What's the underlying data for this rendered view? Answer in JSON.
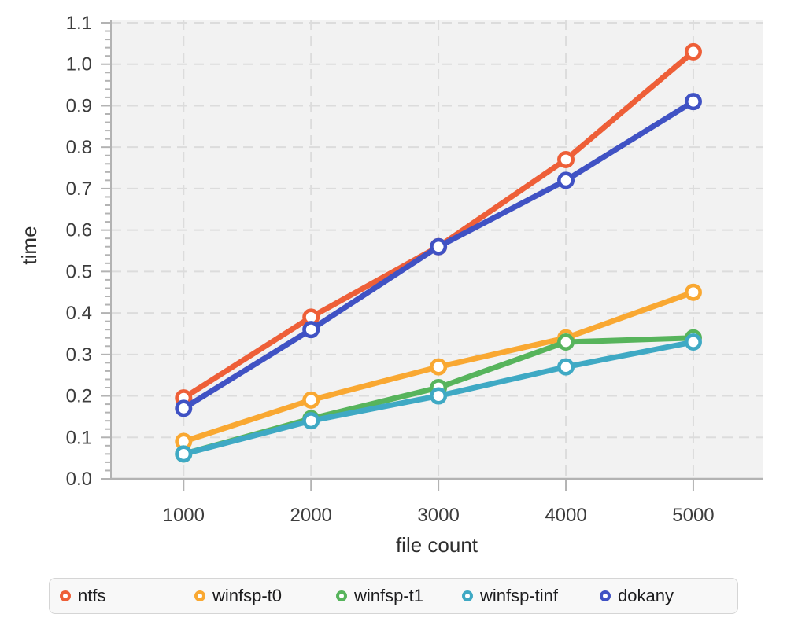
{
  "chart_data": {
    "type": "line",
    "title": "",
    "xlabel": "file count",
    "ylabel": "time",
    "x": [
      1000,
      2000,
      3000,
      4000,
      5000
    ],
    "x_tick_labels": [
      "1000",
      "2000",
      "3000",
      "4000",
      "5000"
    ],
    "y_tick_labels": [
      "0.0",
      "0.1",
      "0.2",
      "0.3",
      "0.4",
      "0.5",
      "0.6",
      "0.7",
      "0.8",
      "0.9",
      "1.0",
      "1.1"
    ],
    "ylim": [
      0.0,
      1.1
    ],
    "xlim": [
      430,
      5550
    ],
    "y_major_step": 0.1,
    "y_minor_step": 0.02,
    "grid": true,
    "grid_style": "dashed",
    "legend_position": "bottom",
    "marker": "open-circle",
    "series": [
      {
        "name": "ntfs",
        "color": "#ee5f38",
        "values": [
          0.195,
          0.39,
          0.56,
          0.77,
          1.03
        ]
      },
      {
        "name": "winfsp-t0",
        "color": "#f9a832",
        "values": [
          0.09,
          0.19,
          0.27,
          0.34,
          0.45
        ]
      },
      {
        "name": "winfsp-t1",
        "color": "#57b45c",
        "values": [
          0.06,
          0.145,
          0.22,
          0.33,
          0.34
        ]
      },
      {
        "name": "winfsp-tinf",
        "color": "#3fa9c4",
        "values": [
          0.06,
          0.14,
          0.2,
          0.27,
          0.33
        ]
      },
      {
        "name": "dokany",
        "color": "#4052c4",
        "values": [
          0.17,
          0.36,
          0.56,
          0.72,
          0.91
        ]
      }
    ]
  },
  "colors": {
    "plot_background": "#f2f2f2",
    "figure_background": "#ffffff",
    "grid_line": "#dcdcdc",
    "axis_line": "#b3b3b3",
    "tick_label": "#3d3d3d",
    "axis_title": "#2e2e2e",
    "legend_background": "#f8f8f8",
    "legend_border": "#d5d5d5",
    "legend_text": "#1c1c1e"
  }
}
